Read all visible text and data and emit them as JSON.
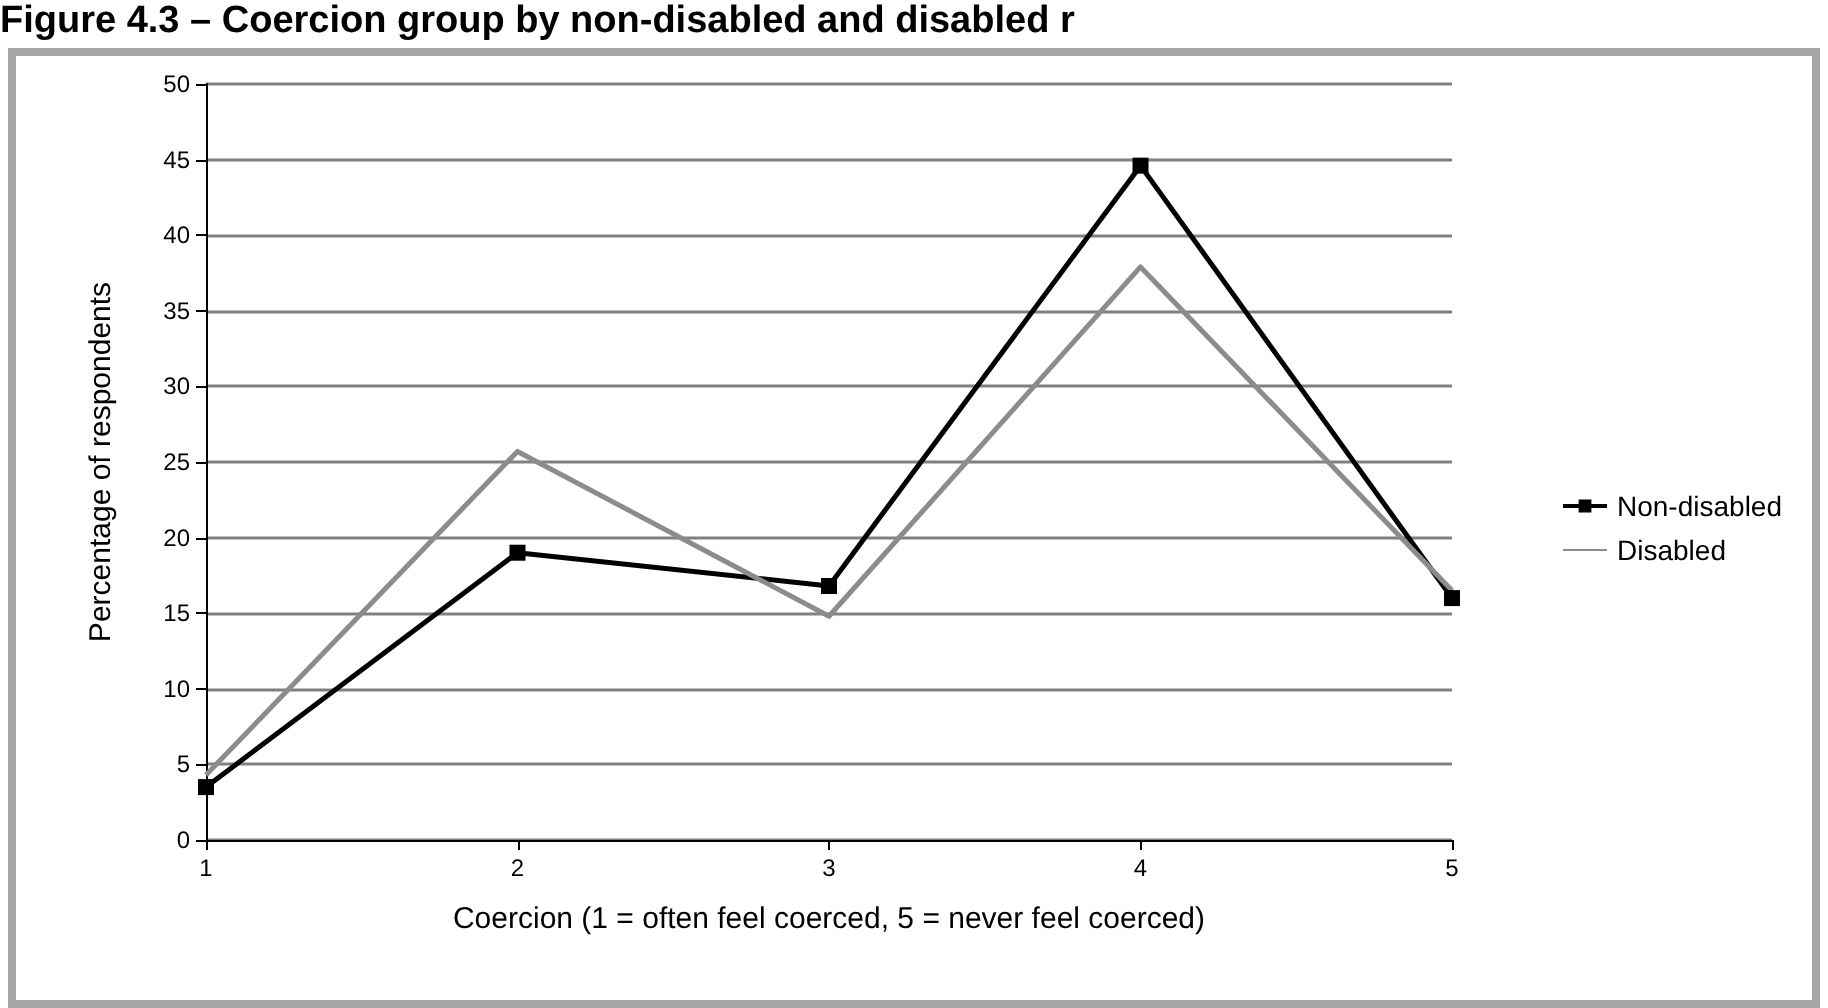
{
  "chart_data": {
    "type": "line",
    "title": "Figure 4.3 – Coercion group by non-disabled and disabled r",
    "xlabel": "Coercion (1 = often feel coerced, 5 = never feel coerced)",
    "ylabel": "Percentage of respondents",
    "categories": [
      "1",
      "2",
      "3",
      "4",
      "5"
    ],
    "series": [
      {
        "name": "Non-disabled",
        "color": "#000000",
        "marker": "square",
        "values": [
          3.5,
          19,
          16.8,
          44.6,
          16
        ]
      },
      {
        "name": "Disabled",
        "color": "#8c8c8c",
        "marker": "none",
        "values": [
          4.3,
          25.7,
          14.8,
          37.9,
          16.5
        ]
      }
    ],
    "ylim": [
      0,
      50
    ],
    "yticks": [
      0,
      5,
      10,
      15,
      20,
      25,
      30,
      35,
      40,
      45,
      50
    ],
    "grid": "y",
    "legend": "right"
  }
}
